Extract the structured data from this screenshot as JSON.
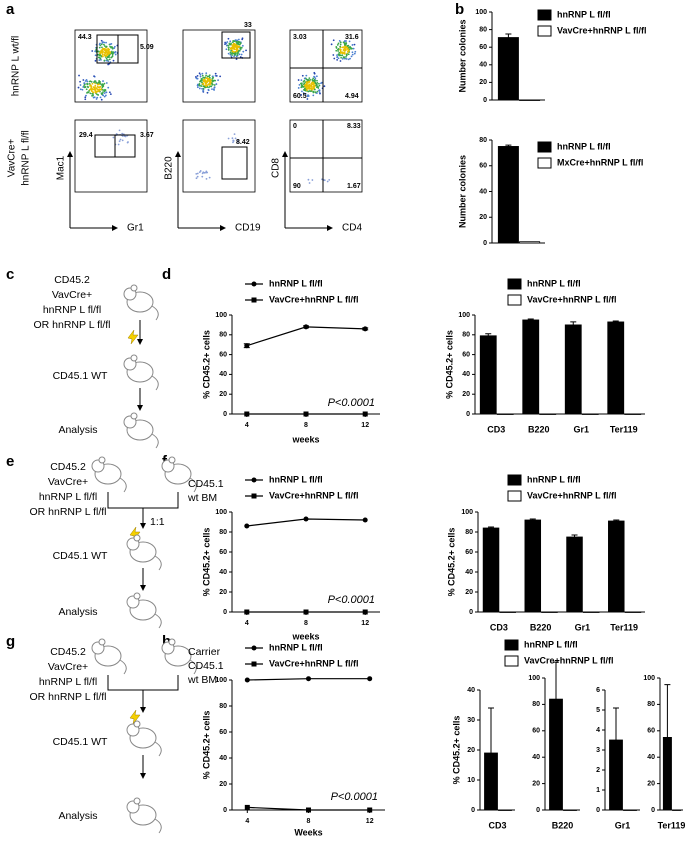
{
  "panels": {
    "letters": [
      "a",
      "b",
      "c",
      "d",
      "e",
      "f",
      "g",
      "h"
    ]
  },
  "flow": {
    "row_labels": [
      [
        "hnRNP L wt/fl"
      ],
      [
        "VavCre+",
        "hnRNP L fl/fl"
      ]
    ],
    "y_labels": [
      "Mac1",
      "B220",
      "CD8"
    ],
    "x_labels": [
      "Gr1",
      "CD19",
      "CD4"
    ],
    "gates": [
      [
        44.3,
        5.09
      ],
      [
        33
      ],
      [
        3.03,
        31.6,
        60.5,
        4.94
      ],
      [
        29.4,
        3.67
      ],
      [
        8.42
      ],
      [
        0,
        8.33,
        90,
        1.67
      ]
    ]
  },
  "diagrams": {
    "c": {
      "donor": [
        "CD45.2",
        "VavCre+",
        "hnRNP L fl/fl",
        "OR hnRNP L fl/fl"
      ],
      "recipient": "CD45.1 WT",
      "analysis": "Analysis"
    },
    "e": {
      "donor": [
        "CD45.2",
        "VavCre+",
        "hnRNP L fl/fl",
        "OR hnRNP L fl/fl"
      ],
      "competitor": [
        "CD45.1",
        "wt BM"
      ],
      "ratio": "1:1",
      "recipient": "CD45.1 WT",
      "analysis": "Analysis"
    },
    "g": {
      "donor": [
        "CD45.2",
        "VavCre+",
        "hnRNP L fl/fl",
        "OR hnRNP L fl/fl"
      ],
      "competitor": [
        "Carrier",
        "CD45.1",
        "wt BM"
      ],
      "recipient": "CD45.1 WT",
      "analysis": "Analysis"
    }
  },
  "chart_data": [
    {
      "type": "bar",
      "ylabel": "Number colonies",
      "ylim": [
        0,
        100
      ],
      "yticks": [
        0,
        20,
        40,
        60,
        80,
        100
      ],
      "series": [
        {
          "name": "hnRNP L fl/fl",
          "color": "#000000",
          "values": [
            71
          ],
          "errors": [
            4
          ]
        },
        {
          "name": "VavCre+hnRNP L fl/fl",
          "color": "#ffffff",
          "values": [
            0
          ]
        }
      ]
    },
    {
      "type": "bar",
      "ylabel": "Number colonies",
      "ylim": [
        0,
        80
      ],
      "yticks": [
        0,
        20,
        40,
        60,
        80
      ],
      "series": [
        {
          "name": "hnRNP L fl/fl",
          "color": "#000000",
          "values": [
            75
          ],
          "errors": [
            1
          ]
        },
        {
          "name": "MxCre+hnRNP L fl/fl",
          "color": "#ffffff",
          "values": [
            1
          ]
        }
      ]
    },
    {
      "type": "line",
      "ylabel": "% CD45.2+ cells",
      "xlabel": "weeks",
      "annotation": "P<0.0001",
      "x": [
        4,
        8,
        12
      ],
      "xlim": [
        3,
        13
      ],
      "xticks": [
        4,
        8,
        12
      ],
      "ylim": [
        0,
        100
      ],
      "yticks": [
        0,
        20,
        40,
        60,
        80,
        100
      ],
      "series": [
        {
          "name": "hnRNP L fl/fl",
          "color": "#000000",
          "values": [
            69,
            88,
            86
          ],
          "errors": [
            2,
            1,
            1
          ]
        },
        {
          "name": "VavCre+hnRNP L fl/fl",
          "color": "#000000",
          "values": [
            0,
            0,
            0
          ]
        }
      ]
    },
    {
      "type": "bar",
      "ylabel": "% CD45.2+ cells",
      "categories": [
        "CD3",
        "B220",
        "Gr1",
        "Ter119"
      ],
      "ylim": [
        0,
        100
      ],
      "yticks": [
        0,
        20,
        40,
        60,
        80,
        100
      ],
      "series": [
        {
          "name": "hnRNP L fl/fl",
          "color": "#000000",
          "values": [
            79,
            95,
            90,
            93
          ],
          "errors": [
            2,
            1,
            3,
            1
          ]
        },
        {
          "name": "VavCre+hnRNP L fl/fl",
          "color": "#ffffff",
          "values": [
            0,
            0,
            0,
            0
          ]
        }
      ]
    },
    {
      "type": "line",
      "ylabel": "% CD45.2+ cells",
      "xlabel": "weeks",
      "annotation": "P<0.0001",
      "x": [
        4,
        8,
        12
      ],
      "xlim": [
        3,
        13
      ],
      "xticks": [
        4,
        8,
        12
      ],
      "ylim": [
        0,
        100
      ],
      "yticks": [
        0,
        20,
        40,
        60,
        80,
        100
      ],
      "series": [
        {
          "name": "hnRNP L fl/fl",
          "color": "#000000",
          "values": [
            86,
            93,
            92
          ]
        },
        {
          "name": "VavCre+hnRNP L fl/fl",
          "color": "#000000",
          "values": [
            0,
            0,
            0
          ]
        }
      ]
    },
    {
      "type": "bar",
      "ylabel": "% CD45.2+ cells",
      "categories": [
        "CD3",
        "B220",
        "Gr1",
        "Ter119"
      ],
      "ylim": [
        0,
        100
      ],
      "yticks": [
        0,
        20,
        40,
        60,
        80,
        100
      ],
      "series": [
        {
          "name": "hnRNP L fl/fl",
          "color": "#000000",
          "values": [
            84,
            92,
            75,
            91
          ],
          "errors": [
            1,
            1,
            2,
            1
          ]
        },
        {
          "name": "VavCre+hnRNP L fl/fl",
          "color": "#ffffff",
          "values": [
            0,
            0,
            0,
            0
          ]
        }
      ]
    },
    {
      "type": "line",
      "ylabel": "% CD45.2+ cells",
      "xlabel": "Weeks",
      "annotation": "P<0.0001",
      "x": [
        4,
        8,
        12
      ],
      "xlim": [
        3,
        13
      ],
      "xticks": [
        4,
        8,
        12
      ],
      "ylim": [
        0,
        100
      ],
      "yticks": [
        0,
        20,
        40,
        60,
        80,
        100
      ],
      "series": [
        {
          "name": "hnRNP L fl/fl",
          "color": "#000000",
          "values": [
            100,
            101,
            101
          ]
        },
        {
          "name": "VavCre+hnRNP L fl/fl",
          "color": "#000000",
          "values": [
            2,
            0,
            0
          ]
        }
      ]
    },
    {
      "type": "bar",
      "ylabel": "% CD45.2+ cells",
      "categories": [
        "CD3"
      ],
      "ylim": [
        0,
        40
      ],
      "yticks": [
        0,
        10,
        20,
        30,
        40
      ],
      "series": [
        {
          "name": "hnRNP L fl/fl",
          "color": "#000000",
          "values": [
            19
          ],
          "errors": [
            15
          ]
        },
        {
          "name": "VavCre+hnRNP L fl/fl",
          "color": "#ffffff",
          "values": [
            0
          ]
        }
      ]
    },
    {
      "type": "bar",
      "categories": [
        "B220"
      ],
      "ylim": [
        0,
        100
      ],
      "yticks": [
        0,
        20,
        40,
        60,
        80,
        100
      ],
      "series": [
        {
          "color": "#000000",
          "values": [
            84
          ],
          "errors": [
            28
          ]
        },
        {
          "color": "#ffffff",
          "values": [
            0
          ]
        }
      ]
    },
    {
      "type": "bar",
      "categories": [
        "Gr1"
      ],
      "ylim": [
        0,
        6
      ],
      "yticks": [
        0,
        1,
        2,
        3,
        4,
        5,
        6
      ],
      "series": [
        {
          "color": "#000000",
          "values": [
            3.5
          ],
          "errors": [
            1.6
          ]
        },
        {
          "color": "#ffffff",
          "values": [
            0
          ]
        }
      ]
    },
    {
      "type": "bar",
      "categories": [
        "Ter119"
      ],
      "ylim": [
        0,
        100
      ],
      "yticks": [
        0,
        20,
        40,
        60,
        80,
        100
      ],
      "series": [
        {
          "color": "#000000",
          "values": [
            55
          ],
          "errors": [
            40
          ]
        },
        {
          "color": "#ffffff",
          "values": [
            0
          ]
        }
      ]
    }
  ]
}
